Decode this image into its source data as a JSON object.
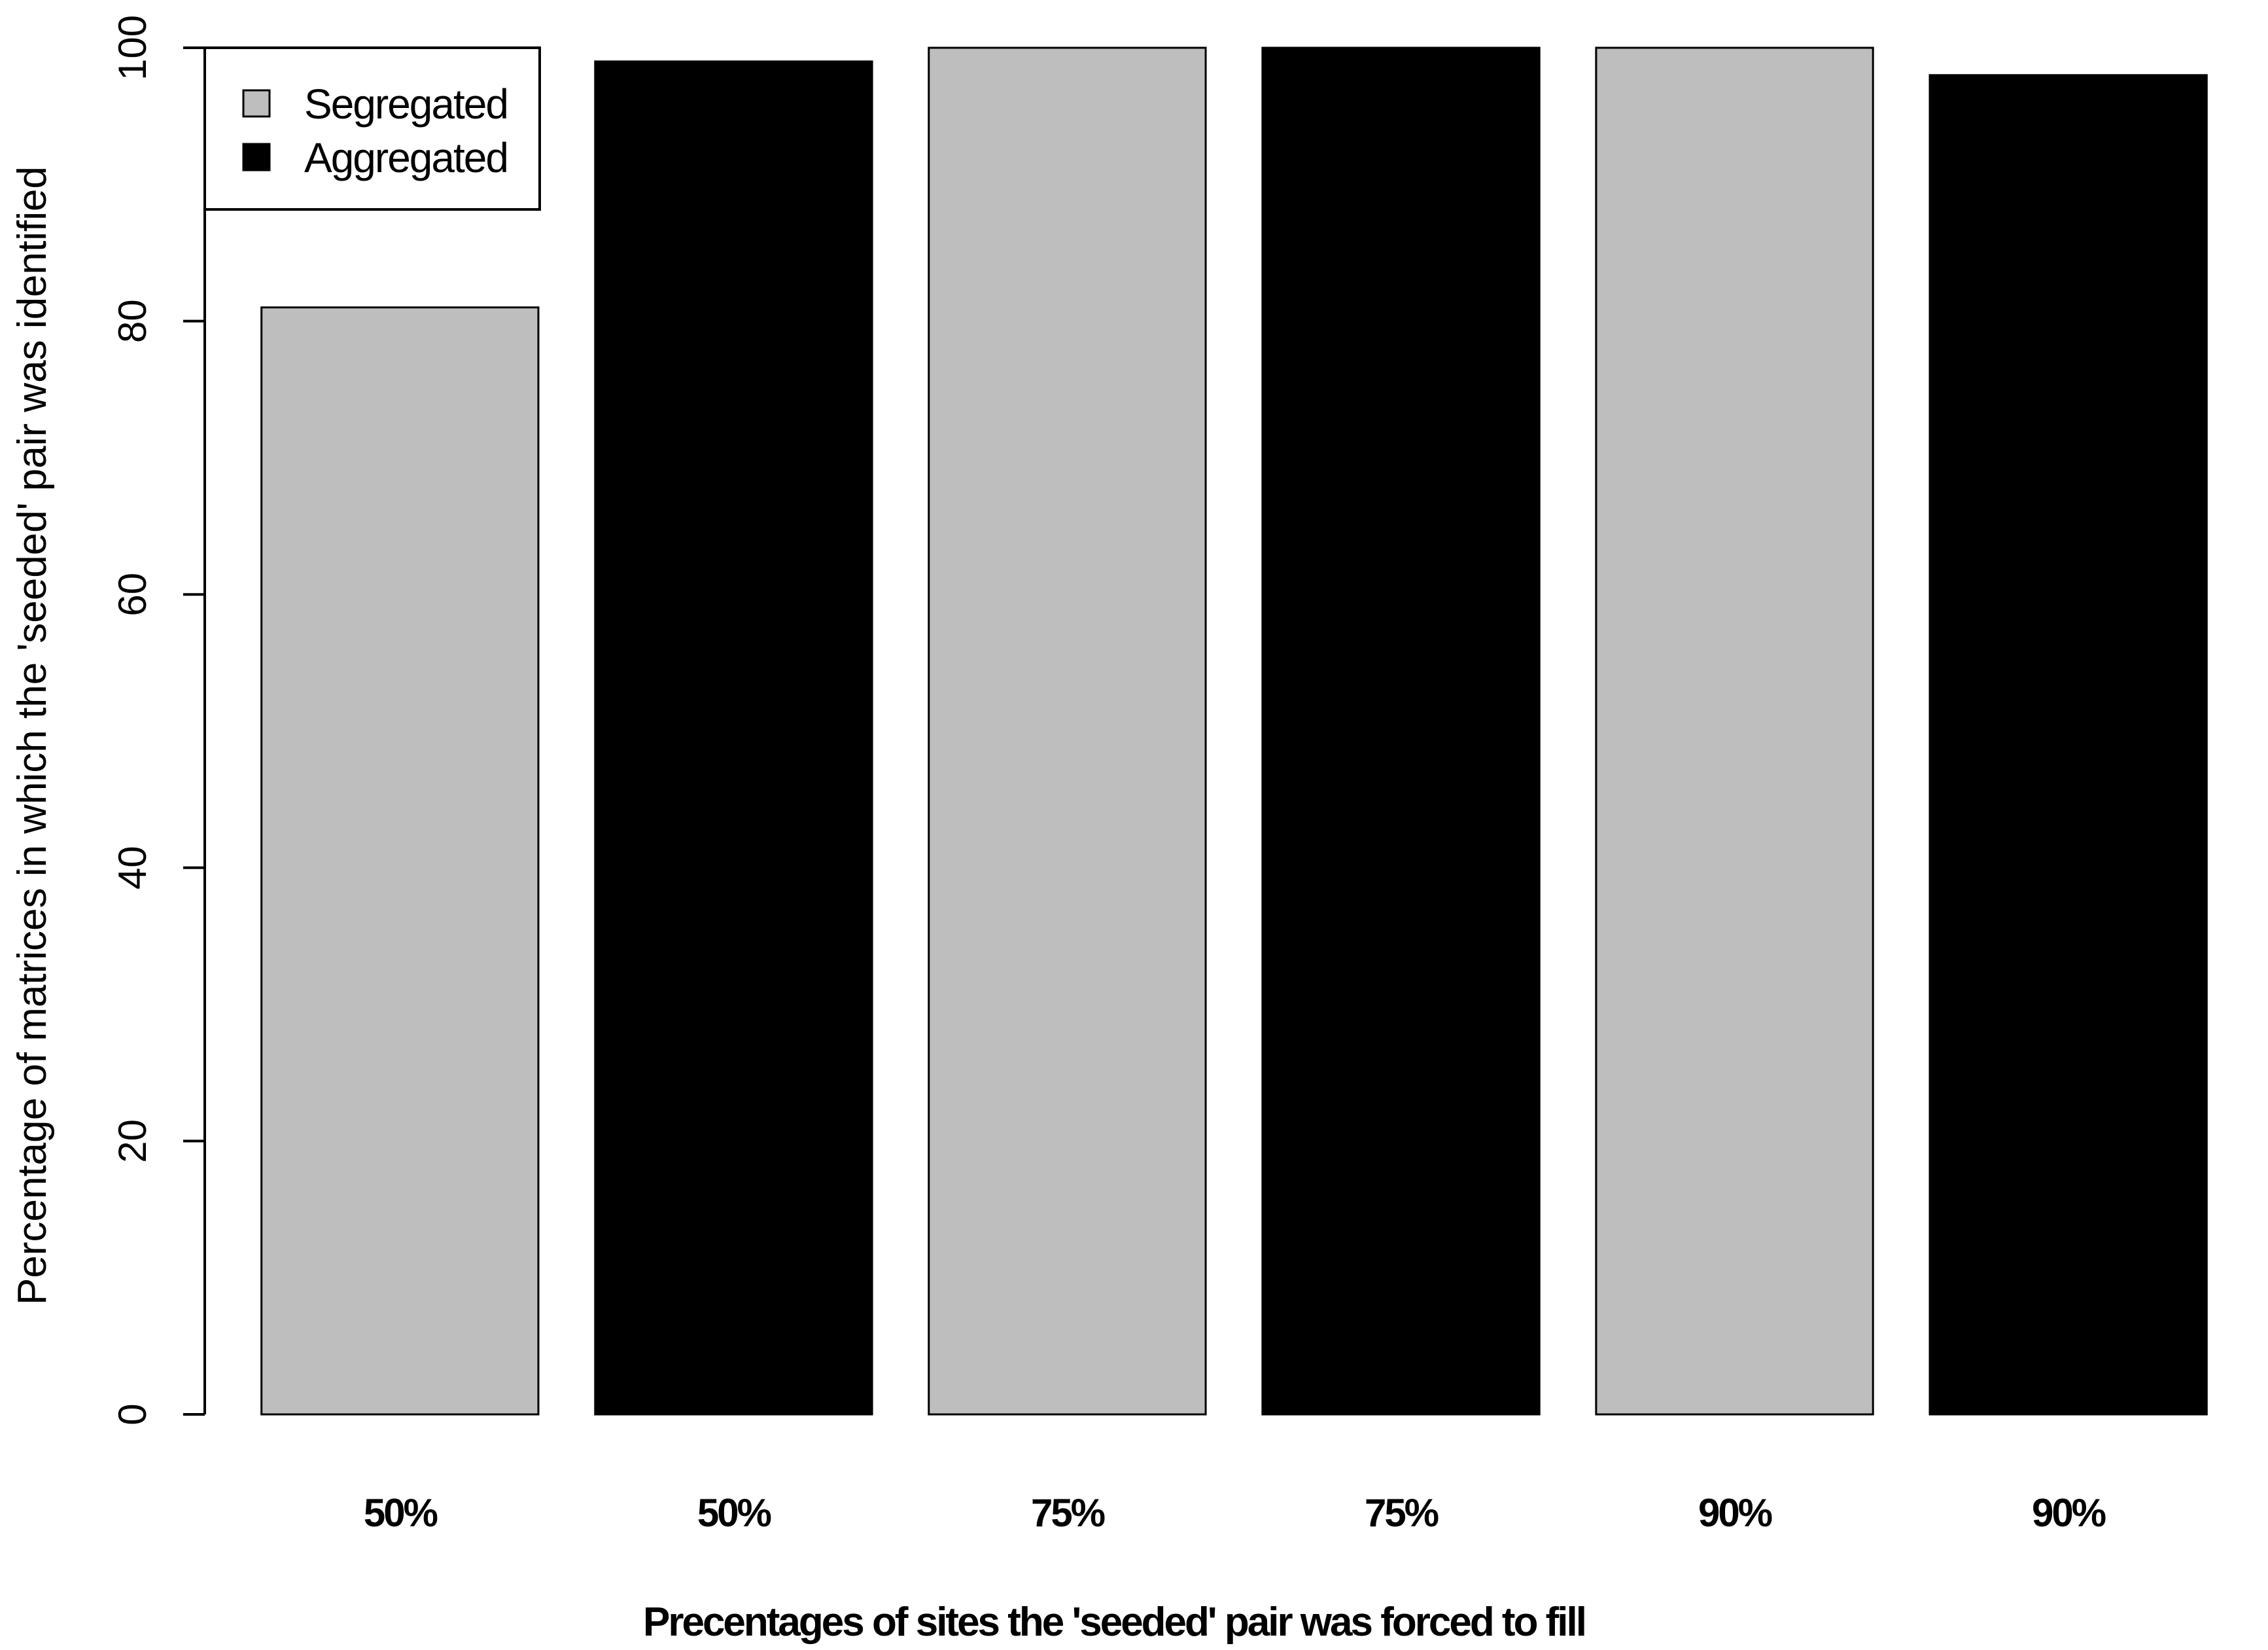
{
  "chart_data": {
    "type": "bar",
    "categories": [
      "50%",
      "50%",
      "75%",
      "75%",
      "90%",
      "90%"
    ],
    "values": [
      81,
      99,
      100,
      100,
      100,
      98
    ],
    "bar_groups": [
      "Segregated",
      "Aggregated",
      "Segregated",
      "Aggregated",
      "Segregated",
      "Aggregated"
    ],
    "xlabel": "Precentages of sites the 'seeded' pair  was forced to fill",
    "ylabel": "Percentage of matrices in which the 'seeded' pair was identified",
    "ylim": [
      0,
      100
    ],
    "yticks": [
      0,
      20,
      40,
      60,
      80,
      100
    ],
    "grid": false,
    "legend": {
      "placement": "top-left",
      "entries": [
        {
          "name": "Segregated",
          "color": "#bebebe"
        },
        {
          "name": "Aggregated",
          "color": "#000000"
        }
      ]
    },
    "colors": {
      "Segregated": "#bebebe",
      "Aggregated": "#000000"
    }
  }
}
